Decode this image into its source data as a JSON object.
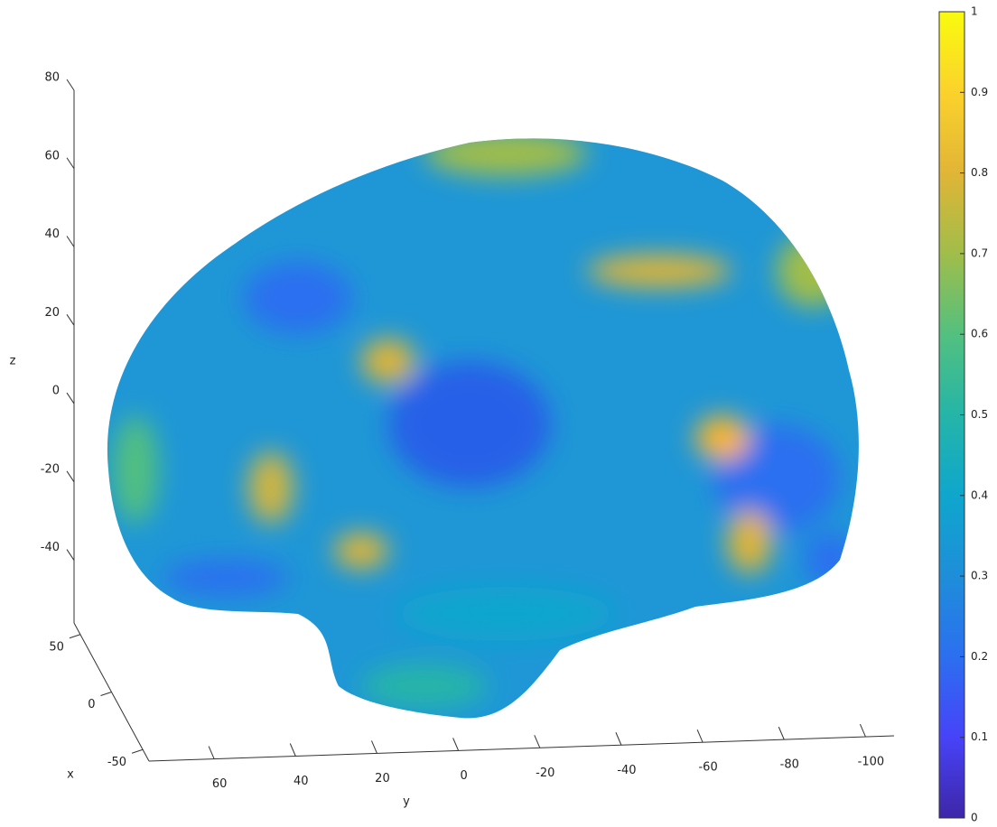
{
  "chart_data": {
    "type": "surface3d",
    "xlabel": "x",
    "ylabel": "y",
    "zlabel": "z",
    "xlim": [
      60,
      -60
    ],
    "xticks": [
      50,
      0,
      -50
    ],
    "ylim": [
      76,
      -107
    ],
    "yticks": [
      60,
      40,
      20,
      0,
      -20,
      -40,
      -60,
      -80,
      -100
    ],
    "zlim": [
      -56,
      80
    ],
    "zticks": [
      80,
      60,
      40,
      20,
      0,
      -20,
      -40
    ],
    "clim": [
      0,
      1
    ],
    "cticks": [
      0,
      0.1,
      0.2,
      0.3,
      0.4,
      0.5,
      0.6,
      0.7,
      0.8,
      0.9,
      1
    ],
    "colormap": [
      "#3e26a8",
      "#4743f8",
      "#2c6ff0",
      "#1e8ed9",
      "#0fa6cd",
      "#25b5a8",
      "#53c07f",
      "#a1bd4a",
      "#e1b536",
      "#fbd22c",
      "#f9fb0e"
    ]
  }
}
